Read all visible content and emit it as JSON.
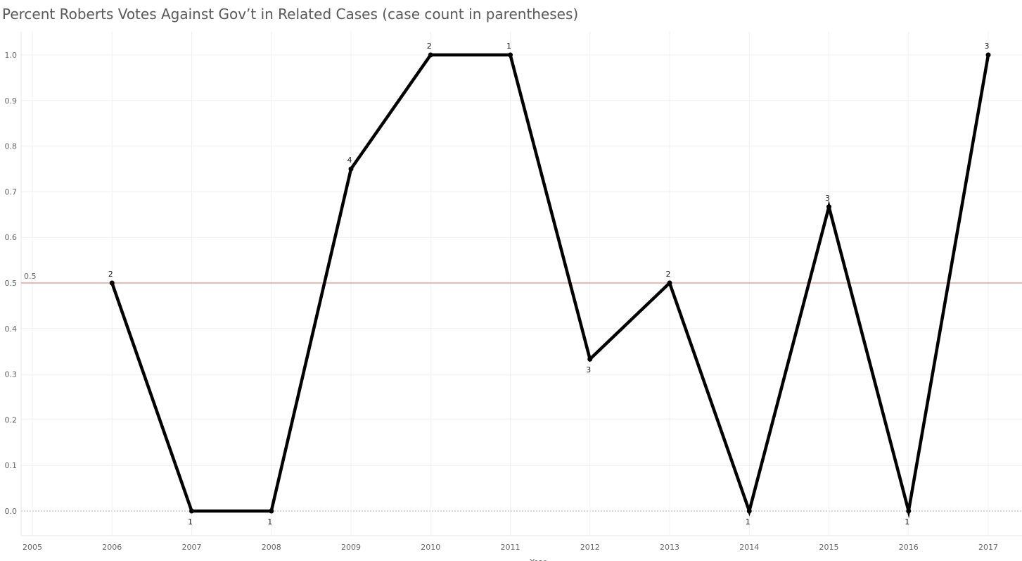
{
  "chart_data": {
    "type": "line",
    "title": "Percent Roberts Votes Against Gov’t in Related Cases (case count in parentheses)",
    "xlabel": "Year",
    "ylabel": "",
    "x_ticks": [
      "2005",
      "2006",
      "2007",
      "2008",
      "2009",
      "2010",
      "2011",
      "2012",
      "2013",
      "2014",
      "2015",
      "2016",
      "2017"
    ],
    "xlim": [
      2005,
      2017
    ],
    "ylim": [
      0,
      1.0
    ],
    "y_ticks": [
      "0.0",
      "0.1",
      "0.2",
      "0.3",
      "0.4",
      "0.5",
      "0.6",
      "0.7",
      "0.8",
      "0.9",
      "1.0"
    ],
    "grid": true,
    "series": [
      {
        "x": [
          2006,
          2007,
          2008,
          2009,
          2010,
          2011,
          2012,
          2013,
          2014,
          2015,
          2016,
          2017
        ],
        "values": [
          0.5,
          0.0,
          0.0,
          0.75,
          1.0,
          1.0,
          0.333,
          0.5,
          0.0,
          0.667,
          0.0,
          1.0
        ],
        "data_labels": [
          "2",
          "1",
          "1",
          "4",
          "2",
          "1",
          "3",
          "2",
          "1",
          "3",
          "1",
          "3"
        ],
        "label_positions": [
          "above",
          "below",
          "below",
          "above",
          "above",
          "above",
          "below",
          "above",
          "below",
          "above",
          "below",
          "above"
        ],
        "color": "#000000"
      }
    ],
    "reference_line": {
      "value": 0.5,
      "label": "0.5",
      "color": "#e8a09a"
    }
  }
}
